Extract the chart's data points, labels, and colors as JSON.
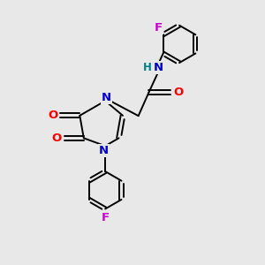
{
  "bg_color": "#e8e8e8",
  "bond_color": "#000000",
  "N_color": "#0000cc",
  "O_color": "#ff0000",
  "F_color": "#cc00cc",
  "H_color": "#008080",
  "figsize": [
    3.0,
    3.0
  ],
  "dpi": 100,
  "lw": 1.4,
  "fs": 8.5,
  "xlim": [
    0,
    10
  ],
  "ylim": [
    0,
    10
  ]
}
